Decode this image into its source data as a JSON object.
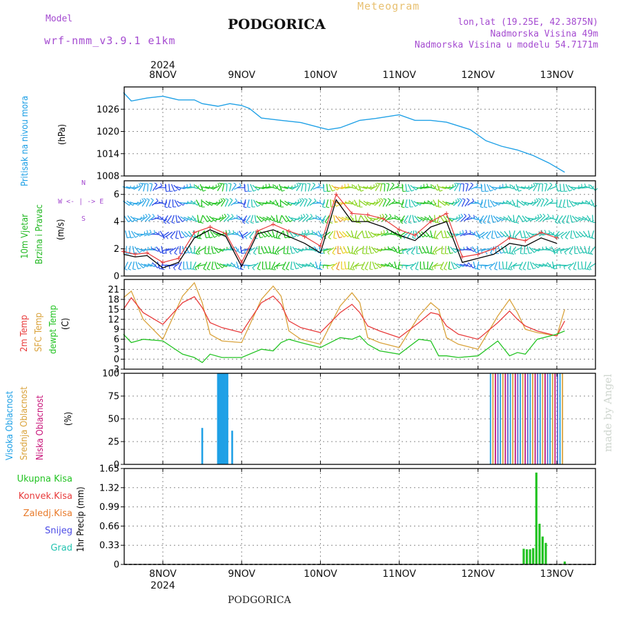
{
  "header": {
    "model_label": "Model",
    "model_name": "wrf-nmm_v3.9.1 e1km",
    "title": "PODGORICA",
    "subtitle": "Meteogram",
    "lonlat": "lon,lat (19.25E, 42.3875N)",
    "elevation": "Nadmorska Visina 49m",
    "model_elevation": "Nadmorska Visina u modelu 54.7171m",
    "footer": "PODGORICA",
    "watermark": "made by Angel"
  },
  "axis": {
    "year": "2024",
    "dates": [
      "8NOV",
      "9NOV",
      "10NOV",
      "11NOV",
      "12NOV",
      "13NOV"
    ]
  },
  "colors": {
    "pressure": "#1ea0e6",
    "wind_speed_label": "#22b822",
    "wind_mean": "#000000",
    "wind_gust": "#e83a3a",
    "temp_2m": "#e83a3a",
    "temp_sfc": "#d9a23a",
    "dewpoint": "#22c322",
    "cloud_high": "#1ea0e6",
    "cloud_mid": "#d9a23a",
    "cloud_low": "#c8147a",
    "precip_total": "#22c322",
    "precip_conv": "#e83a3a",
    "precip_frozen": "#e87a2a",
    "snow": "#4a4ae6",
    "grad": "#22c3b0",
    "header_purple": "#a44ad0",
    "header_gold": "#e8c070"
  },
  "panel_labels": {
    "pressure": {
      "name": "Pritisak na nivou mora",
      "unit": "(hPa)"
    },
    "wind": {
      "name1": "10m Vjetar",
      "name2": "Brzina i Pravac",
      "unit": "(m/s)",
      "compass": "W <- | -> E",
      "compass_n": "N",
      "compass_s": "S"
    },
    "temp": {
      "name1": "2m Temp",
      "name2": "SFC Temp",
      "name3": "dewpt Temp",
      "unit": "(C)"
    },
    "cloud": {
      "name1": "Visoka Oblacnost",
      "name2": "Srednja Oblacnost",
      "name3": "Niska Oblacnost",
      "unit": "(%)"
    },
    "precip": {
      "unit": "1hr Precip (mm)",
      "legend": [
        "Ukupna Kisa",
        "Konvek.Kisa",
        "Zaledj.Kisa",
        "Snijeg",
        "Grad"
      ]
    }
  },
  "chart_data": [
    {
      "type": "line",
      "title": "Pritisak na nivou mora",
      "ylabel": "(hPa)",
      "ylim": [
        1008,
        1032
      ],
      "yticks": [
        "1008",
        "1014",
        "1020",
        "1026"
      ],
      "x_days": [
        0.0,
        0.1,
        0.3,
        0.5,
        0.7,
        0.9,
        1.0,
        1.2,
        1.35,
        1.5,
        1.6,
        1.75,
        2.0,
        2.25,
        2.5,
        2.6,
        2.75,
        3.0,
        3.2,
        3.5,
        3.7,
        3.9,
        4.1,
        4.4,
        4.6,
        4.8,
        5.0,
        5.2,
        5.4,
        5.6
      ],
      "series": [
        {
          "values": [
            1030.5,
            1028.2,
            1029.0,
            1029.5,
            1028.5,
            1028.5,
            1027.5,
            1026.8,
            1027.5,
            1027.0,
            1026.2,
            1023.6,
            1023.0,
            1022.4,
            1021.0,
            1020.5,
            1021.0,
            1023.0,
            1023.5,
            1024.5,
            1023.0,
            1023.0,
            1022.5,
            1020.5,
            1017.5,
            1016.0,
            1015.0,
            1013.5,
            1011.5,
            1009.0
          ]
        }
      ]
    },
    {
      "type": "line",
      "title": "10m Vjetar Brzina i Pravac",
      "ylabel": "(m/s)",
      "ylim": [
        0,
        7
      ],
      "yticks": [
        "0",
        "2",
        "4",
        "6"
      ],
      "x_days": [
        0.0,
        0.15,
        0.3,
        0.5,
        0.7,
        0.9,
        1.1,
        1.3,
        1.5,
        1.7,
        1.9,
        2.1,
        2.3,
        2.5,
        2.7,
        2.9,
        3.1,
        3.3,
        3.5,
        3.7,
        3.9,
        4.1,
        4.3,
        4.5,
        4.7,
        4.9,
        5.1,
        5.3,
        5.5
      ],
      "series": [
        {
          "values": [
            1.6,
            1.4,
            1.5,
            0.6,
            1.0,
            2.8,
            3.4,
            2.9,
            0.7,
            3.1,
            3.4,
            2.9,
            2.4,
            1.7,
            5.6,
            4.0,
            4.0,
            3.6,
            3.0,
            2.6,
            3.6,
            4.0,
            1.0,
            1.3,
            1.6,
            2.4,
            2.2,
            2.8,
            2.4
          ]
        },
        {
          "values": [
            1.8,
            1.6,
            1.7,
            1.0,
            1.3,
            3.2,
            3.6,
            3.1,
            1.0,
            3.3,
            3.8,
            3.3,
            2.9,
            2.2,
            6.0,
            4.6,
            4.5,
            4.2,
            3.4,
            3.0,
            4.0,
            4.6,
            1.4,
            1.6,
            2.0,
            2.8,
            2.6,
            3.2,
            2.8
          ]
        }
      ]
    },
    {
      "type": "line",
      "title": "2m Temp / SFC Temp / dewpt Temp",
      "ylabel": "(C)",
      "ylim": [
        -3,
        24
      ],
      "yticks": [
        "-3",
        "0",
        "3",
        "6",
        "9",
        "12",
        "15",
        "18",
        "21"
      ],
      "x_days": [
        0.0,
        0.1,
        0.25,
        0.5,
        0.75,
        0.9,
        1.0,
        1.1,
        1.25,
        1.5,
        1.75,
        1.9,
        2.0,
        2.1,
        2.25,
        2.5,
        2.75,
        2.9,
        3.0,
        3.1,
        3.25,
        3.5,
        3.75,
        3.9,
        4.0,
        4.1,
        4.25,
        4.5,
        4.75,
        4.9,
        5.0,
        5.1,
        5.25,
        5.5,
        5.6
      ],
      "series": [
        {
          "name": "2m Temp",
          "values": [
            15.0,
            18.5,
            14.0,
            10.5,
            17.0,
            18.8,
            15.5,
            11.0,
            9.5,
            8.0,
            17.0,
            19.0,
            16.5,
            11.5,
            9.5,
            8.0,
            14.0,
            16.5,
            14.0,
            10.0,
            8.5,
            6.5,
            11.0,
            14.0,
            13.5,
            10.0,
            7.5,
            6.0,
            11.0,
            14.5,
            12.0,
            10.0,
            8.5,
            7.0,
            11.5
          ]
        },
        {
          "name": "SFC Temp",
          "values": [
            18.5,
            20.5,
            12.0,
            6.0,
            19.0,
            23.0,
            17.0,
            7.5,
            5.5,
            5.0,
            18.0,
            22.0,
            19.0,
            8.5,
            6.0,
            4.5,
            16.0,
            20.0,
            17.0,
            6.5,
            5.0,
            3.5,
            13.0,
            17.0,
            15.0,
            6.5,
            4.5,
            3.0,
            13.0,
            18.0,
            14.0,
            9.0,
            8.0,
            7.0,
            15.0
          ]
        },
        {
          "name": "dewpt Temp",
          "values": [
            7.5,
            5.0,
            6.0,
            5.5,
            1.5,
            0.5,
            -1.0,
            1.5,
            0.5,
            0.5,
            3.0,
            2.5,
            5.0,
            6.0,
            5.0,
            3.5,
            6.5,
            6.0,
            7.0,
            4.5,
            2.5,
            1.5,
            6.0,
            5.5,
            1.0,
            1.0,
            0.5,
            1.0,
            5.5,
            1.0,
            2.0,
            1.5,
            6.0,
            7.5,
            8.5
          ]
        }
      ]
    },
    {
      "type": "bar",
      "title": "Visoka / Srednja / Niska Oblacnost",
      "ylabel": "(%)",
      "ylim": [
        0,
        100
      ],
      "yticks": [
        "0",
        "25",
        "50",
        "75",
        "100"
      ],
      "x_days": [
        1.0,
        1.2,
        1.22,
        1.24,
        1.26,
        1.28,
        1.3,
        1.32,
        1.38
      ],
      "series": [
        {
          "name": "Visoka Oblacnost",
          "values": [
            40,
            100,
            100,
            100,
            100,
            100,
            100,
            100,
            37
          ]
        }
      ],
      "overcast_from_day": 4.65,
      "overcast_to_day": 5.6,
      "overcast_value": 100
    },
    {
      "type": "bar",
      "title": "1hr Precip",
      "ylabel": "(mm)",
      "ylim": [
        0,
        1.65
      ],
      "yticks": [
        "0",
        "0.33",
        "0.66",
        "0.99",
        "1.32",
        "1.65"
      ],
      "x_days": [
        5.08,
        5.12,
        5.16,
        5.2,
        5.24,
        5.28,
        5.32,
        5.36,
        5.6
      ],
      "series": [
        {
          "name": "Ukupna Kisa",
          "values": [
            0.27,
            0.26,
            0.26,
            0.28,
            1.58,
            0.7,
            0.48,
            0.37,
            0.05
          ]
        }
      ]
    }
  ]
}
